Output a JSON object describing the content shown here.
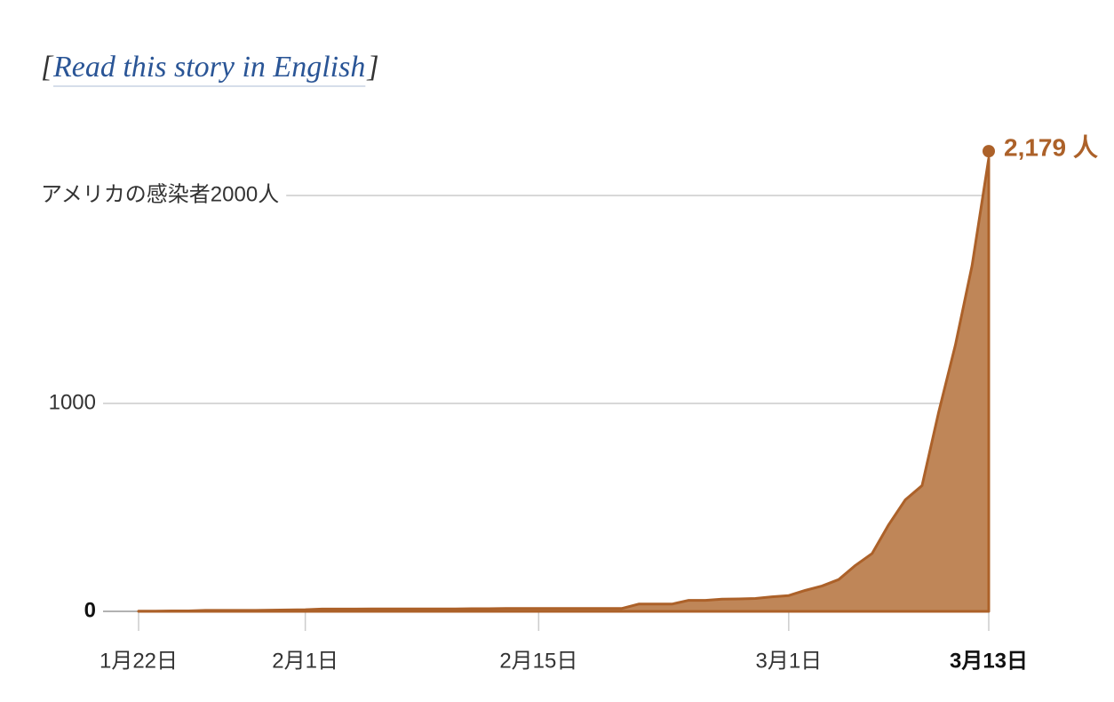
{
  "link": {
    "prefix": "[",
    "text": "Read this story in English",
    "suffix": "]"
  },
  "chart_data": {
    "type": "area",
    "categories": [
      "1月22日",
      null,
      null,
      null,
      null,
      null,
      null,
      null,
      null,
      null,
      "2月1日",
      null,
      null,
      null,
      null,
      null,
      null,
      null,
      null,
      null,
      null,
      null,
      null,
      null,
      "2月15日",
      null,
      null,
      null,
      null,
      null,
      null,
      null,
      null,
      null,
      null,
      null,
      null,
      null,
      null,
      "3月1日",
      null,
      null,
      null,
      null,
      null,
      null,
      null,
      null,
      null,
      null,
      null,
      "3月13日"
    ],
    "values": [
      1,
      1,
      2,
      2,
      5,
      5,
      5,
      5,
      6,
      7,
      8,
      11,
      11,
      11,
      12,
      12,
      12,
      12,
      12,
      12,
      13,
      13,
      14,
      14,
      14,
      14,
      14,
      14,
      14,
      14,
      35,
      35,
      35,
      53,
      53,
      59,
      60,
      62,
      70,
      76,
      101,
      122,
      153,
      221,
      278,
      417,
      537,
      605,
      959,
      1281,
      1663,
      2179
    ],
    "value_labels": [
      null,
      null,
      null,
      null,
      null,
      null,
      null,
      null,
      null,
      null,
      null,
      null,
      null,
      null,
      null,
      null,
      null,
      null,
      null,
      null,
      null,
      null,
      null,
      null,
      null,
      null,
      null,
      null,
      null,
      null,
      null,
      null,
      null,
      null,
      null,
      null,
      null,
      null,
      null,
      null,
      null,
      null,
      null,
      null,
      null,
      null,
      null,
      null,
      null,
      null,
      null,
      "2,179 人"
    ],
    "color": "#bf8658",
    "line_color": "#ac6129",
    "ylim": [
      0,
      2200
    ],
    "yticks": [
      0,
      1000,
      {
        "value": 2000,
        "label": "アメリカの感染者2000人"
      }
    ],
    "grid": true
  }
}
